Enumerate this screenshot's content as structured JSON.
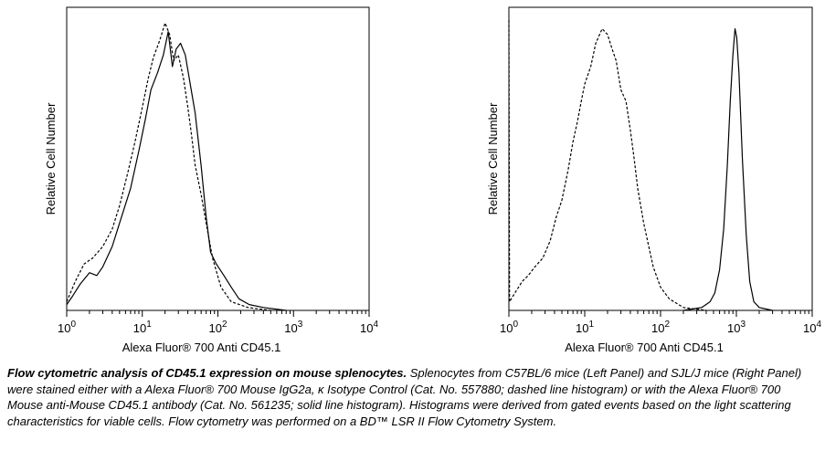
{
  "caption": {
    "bold": "Flow cytometric analysis of CD45.1 expression on mouse splenocytes.",
    "text": "Splenocytes from C57BL/6 mice (Left Panel) and SJL/J mice (Right Panel) were stained either with a Alexa Fluor® 700 Mouse IgG2a, κ Isotype Control (Cat. No. 557880; dashed line histogram) or with the Alexa Fluor® 700 Mouse anti-Mouse CD45.1 antibody (Cat. No. 561235; solid line histogram). Histograms were derived from gated events based on the light scattering characteristics for viable cells. Flow cytometry was performed on a BD™ LSR II Flow Cytometry System."
  },
  "chart_data": [
    {
      "type": "line",
      "xlabel": "Alexa Fluor® 700 Anti CD45.1",
      "ylabel": "Relative Cell Number",
      "x_scale": "log",
      "xlim": [
        1,
        10000
      ],
      "ylim": [
        0,
        100
      ],
      "xticks": [
        {
          "base": "10",
          "exp": "0"
        },
        {
          "base": "10",
          "exp": "1"
        },
        {
          "base": "10",
          "exp": "2"
        },
        {
          "base": "10",
          "exp": "3"
        },
        {
          "base": "10",
          "exp": "4"
        }
      ],
      "series": [
        {
          "style": "dashed",
          "points": [
            [
              1.0,
              3
            ],
            [
              1.3,
              10
            ],
            [
              1.7,
              16
            ],
            [
              2.2,
              18
            ],
            [
              3,
              22
            ],
            [
              4,
              28
            ],
            [
              5,
              36
            ],
            [
              6.5,
              48
            ],
            [
              8,
              58
            ],
            [
              10,
              70
            ],
            [
              12,
              80
            ],
            [
              14,
              87
            ],
            [
              17,
              93
            ],
            [
              20,
              99
            ],
            [
              23,
              95
            ],
            [
              26,
              86
            ],
            [
              30,
              88
            ],
            [
              35,
              80
            ],
            [
              40,
              70
            ],
            [
              45,
              60
            ],
            [
              50,
              50
            ],
            [
              60,
              40
            ],
            [
              70,
              30
            ],
            [
              85,
              18
            ],
            [
              110,
              8
            ],
            [
              150,
              3
            ],
            [
              250,
              1
            ],
            [
              500,
              0
            ]
          ]
        },
        {
          "style": "solid",
          "points": [
            [
              1.0,
              2
            ],
            [
              1.2,
              5
            ],
            [
              1.5,
              9
            ],
            [
              2,
              13
            ],
            [
              2.5,
              12
            ],
            [
              3,
              15
            ],
            [
              4,
              22
            ],
            [
              5,
              30
            ],
            [
              7,
              42
            ],
            [
              9,
              55
            ],
            [
              11,
              66
            ],
            [
              13,
              76
            ],
            [
              16,
              82
            ],
            [
              19,
              88
            ],
            [
              22,
              96
            ],
            [
              25,
              84
            ],
            [
              28,
              90
            ],
            [
              32,
              92
            ],
            [
              37,
              88
            ],
            [
              43,
              78
            ],
            [
              50,
              68
            ],
            [
              60,
              50
            ],
            [
              70,
              32
            ],
            [
              80,
              20
            ],
            [
              95,
              16
            ],
            [
              120,
              12
            ],
            [
              150,
              8
            ],
            [
              190,
              4
            ],
            [
              260,
              2
            ],
            [
              400,
              1
            ],
            [
              800,
              0
            ]
          ]
        }
      ]
    },
    {
      "type": "line",
      "xlabel": "Alexa Fluor® 700 Anti CD45.1",
      "ylabel": "Relative Cell Number",
      "x_scale": "log",
      "xlim": [
        1,
        10000
      ],
      "ylim": [
        0,
        100
      ],
      "xticks": [
        {
          "base": "10",
          "exp": "0"
        },
        {
          "base": "10",
          "exp": "1"
        },
        {
          "base": "10",
          "exp": "2"
        },
        {
          "base": "10",
          "exp": "3"
        },
        {
          "base": "10",
          "exp": "4"
        }
      ],
      "series": [
        {
          "style": "dashed",
          "points": [
            [
              1.0,
              100
            ],
            [
              1.02,
              3
            ],
            [
              1.2,
              6
            ],
            [
              1.5,
              10
            ],
            [
              1.8,
              12
            ],
            [
              2.2,
              15
            ],
            [
              2.8,
              18
            ],
            [
              3.5,
              24
            ],
            [
              4.2,
              32
            ],
            [
              5,
              38
            ],
            [
              6,
              48
            ],
            [
              7,
              58
            ],
            [
              8,
              65
            ],
            [
              9,
              72
            ],
            [
              10,
              78
            ],
            [
              12,
              84
            ],
            [
              14,
              92
            ],
            [
              17,
              97
            ],
            [
              20,
              95
            ],
            [
              23,
              90
            ],
            [
              26,
              86
            ],
            [
              30,
              76
            ],
            [
              35,
              72
            ],
            [
              40,
              62
            ],
            [
              45,
              52
            ],
            [
              50,
              42
            ],
            [
              60,
              30
            ],
            [
              70,
              22
            ],
            [
              80,
              15
            ],
            [
              100,
              8
            ],
            [
              130,
              4
            ],
            [
              200,
              1
            ],
            [
              400,
              0
            ]
          ]
        },
        {
          "style": "solid",
          "points": [
            [
              200,
              0
            ],
            [
              350,
              1
            ],
            [
              450,
              3
            ],
            [
              520,
              6
            ],
            [
              600,
              14
            ],
            [
              680,
              28
            ],
            [
              760,
              50
            ],
            [
              830,
              72
            ],
            [
              900,
              88
            ],
            [
              960,
              97
            ],
            [
              1010,
              94
            ],
            [
              1080,
              82
            ],
            [
              1200,
              52
            ],
            [
              1350,
              26
            ],
            [
              1500,
              10
            ],
            [
              1700,
              3
            ],
            [
              2000,
              1
            ],
            [
              3000,
              0
            ]
          ]
        }
      ]
    }
  ]
}
